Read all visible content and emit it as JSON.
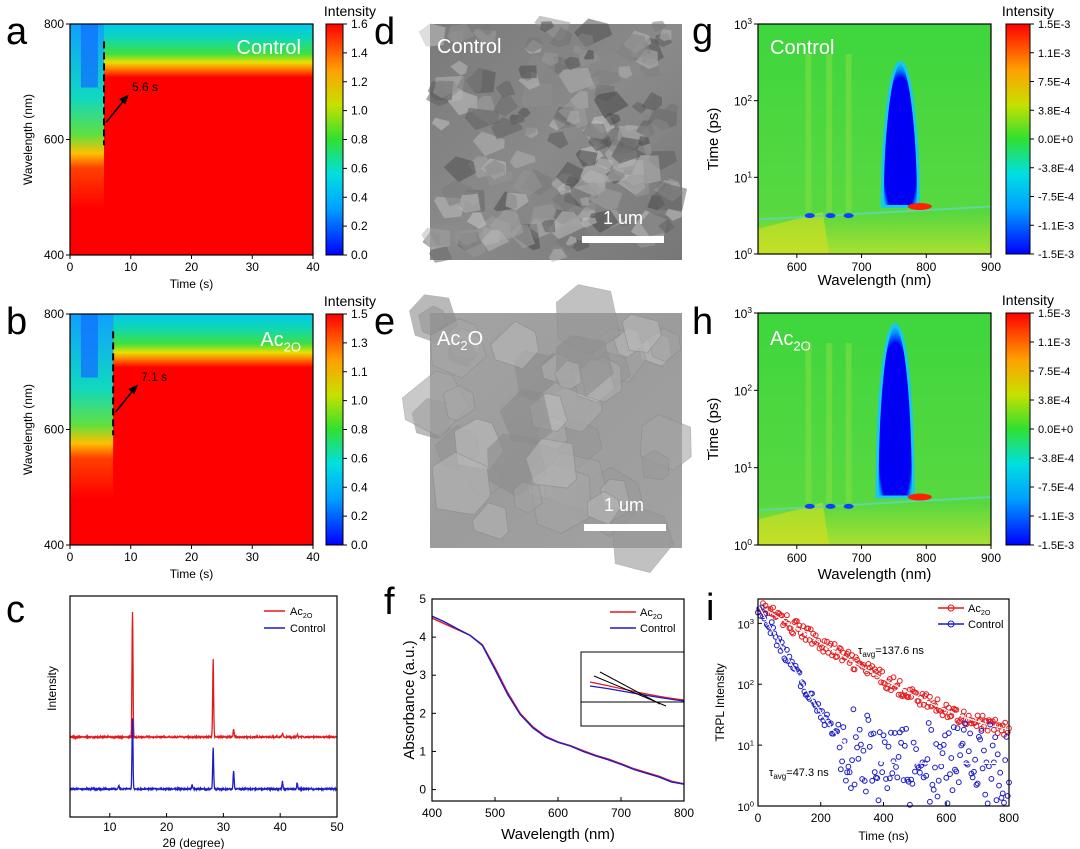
{
  "panel_letters": [
    "a",
    "b",
    "c",
    "d",
    "e",
    "f",
    "g",
    "h",
    "i"
  ],
  "colors": {
    "red": "#e31a1c",
    "blue": "#1c1cc8",
    "frame": "#000000",
    "map_red": "#ff0000",
    "map_blue": "#0000ff",
    "map_green": "#38d638"
  },
  "chart_data": [
    {
      "id": "a",
      "type": "heatmap",
      "title": "Control",
      "xlabel": "Time (s)",
      "ylabel": "Wavelength (nm)",
      "xlim": [
        0,
        40
      ],
      "ylim": [
        400,
        800
      ],
      "xticks": [
        0,
        10,
        20,
        30,
        40
      ],
      "yticks": [
        400,
        600,
        800
      ],
      "colorbar": {
        "title": "Intensity",
        "range": [
          0.0,
          1.6
        ],
        "ticks": [
          "0.0",
          "0.2",
          "0.4",
          "0.6",
          "0.8",
          "1.0",
          "1.2",
          "1.4",
          "1.6"
        ]
      },
      "annotation": "5.6 s",
      "transition_time": 5.6
    },
    {
      "id": "b",
      "type": "heatmap",
      "title": "Ac2O",
      "xlabel": "Time (s)",
      "ylabel": "Wavelength (nm)",
      "xlim": [
        0,
        40
      ],
      "ylim": [
        400,
        800
      ],
      "xticks": [
        0,
        10,
        20,
        30,
        40
      ],
      "yticks": [
        400,
        600,
        800
      ],
      "colorbar": {
        "title": "Intensity",
        "range": [
          0.0,
          1.5
        ],
        "ticks": [
          "0.0",
          "0.2",
          "0.4",
          "0.6",
          "0.8",
          "1.0",
          "1.1",
          "1.3",
          "1.5"
        ]
      },
      "annotation": "7.1 s",
      "transition_time": 7.1
    },
    {
      "id": "c",
      "type": "line",
      "xlabel": "2θ (degree)",
      "ylabel": "Intensity",
      "xlim": [
        3,
        50
      ],
      "xticks": [
        10,
        20,
        30,
        40,
        50
      ],
      "legend": [
        "Ac2O",
        "Control"
      ],
      "series": [
        {
          "name": "Ac2O",
          "color": "red",
          "peaks": [
            {
              "x": 14.0,
              "h": 1.0
            },
            {
              "x": 28.2,
              "h": 0.62
            },
            {
              "x": 31.8,
              "h": 0.06
            },
            {
              "x": 40.4,
              "h": 0.03
            },
            {
              "x": 43.0,
              "h": 0.02
            }
          ]
        },
        {
          "name": "Control",
          "color": "blue",
          "peaks": [
            {
              "x": 14.0,
              "h": 0.47
            },
            {
              "x": 28.2,
              "h": 0.28
            },
            {
              "x": 31.8,
              "h": 0.12
            },
            {
              "x": 24.5,
              "h": 0.03
            },
            {
              "x": 40.4,
              "h": 0.05
            },
            {
              "x": 43.0,
              "h": 0.04
            },
            {
              "x": 11.6,
              "h": 0.02
            }
          ]
        }
      ]
    },
    {
      "id": "d",
      "type": "image",
      "label": "Control",
      "scale_bar": "1 um"
    },
    {
      "id": "e",
      "type": "image",
      "label": "Ac2O",
      "scale_bar": "1 um"
    },
    {
      "id": "f",
      "type": "line",
      "xlabel": "Wavelength (nm)",
      "ylabel": "Absorbance (a.u.)",
      "xlim": [
        400,
        800
      ],
      "ylim": [
        -0.3,
        5
      ],
      "xticks": [
        400,
        500,
        600,
        700,
        800
      ],
      "yticks": [
        0,
        1,
        2,
        3,
        4,
        5
      ],
      "legend": [
        "Ac2O",
        "Control"
      ],
      "series": [
        {
          "name": "Ac2O",
          "color": "red",
          "x": [
            400,
            420,
            440,
            460,
            480,
            500,
            520,
            540,
            560,
            580,
            600,
            620,
            640,
            660,
            680,
            700,
            720,
            740,
            760,
            780,
            800
          ],
          "y": [
            4.5,
            4.35,
            4.2,
            4.05,
            3.8,
            3.2,
            2.55,
            2.0,
            1.65,
            1.4,
            1.25,
            1.15,
            1.02,
            0.9,
            0.8,
            0.68,
            0.55,
            0.45,
            0.35,
            0.22,
            0.15
          ]
        },
        {
          "name": "Control",
          "color": "blue",
          "x": [
            400,
            420,
            440,
            460,
            480,
            500,
            520,
            540,
            560,
            580,
            600,
            620,
            640,
            660,
            680,
            700,
            720,
            740,
            760,
            780,
            800
          ],
          "y": [
            4.55,
            4.4,
            4.22,
            4.05,
            3.78,
            3.15,
            2.5,
            1.97,
            1.62,
            1.38,
            1.24,
            1.14,
            1.0,
            0.88,
            0.78,
            0.66,
            0.53,
            0.43,
            0.33,
            0.2,
            0.14
          ]
        }
      ]
    },
    {
      "id": "g",
      "type": "heatmap",
      "title": "Control",
      "xlabel": "Wavelength (nm)",
      "ylabel": "Time (ps)",
      "xlim": [
        540,
        900
      ],
      "ylim_log": [
        0,
        3
      ],
      "xticks": [
        600,
        700,
        800,
        900
      ],
      "yticks": [
        "10^0",
        "10^1",
        "10^2",
        "10^3"
      ],
      "colorbar": {
        "title": "Intensity",
        "ticks": [
          "-1.5E-3",
          "-1.1E-3",
          "-7.5E-4",
          "-3.8E-4",
          "0.0E+0",
          "3.8E-4",
          "7.5E-4",
          "1.1E-3",
          "1.5E-3"
        ]
      },
      "bleach_center": 760,
      "bleach_top_log": 2.5
    },
    {
      "id": "h",
      "type": "heatmap",
      "title": "Ac2O",
      "xlabel": "Wavelength (nm)",
      "ylabel": "Time (ps)",
      "xlim": [
        540,
        900
      ],
      "ylim_log": [
        0,
        3
      ],
      "xticks": [
        600,
        700,
        800,
        900
      ],
      "yticks": [
        "10^0",
        "10^1",
        "10^2",
        "10^3"
      ],
      "colorbar": {
        "title": "Intensity",
        "ticks": [
          "-1.5E-3",
          "-1.1E-3",
          "-7.5E-4",
          "-3.8E-4",
          "0.0E+0",
          "3.8E-4",
          "7.5E-4",
          "1.1E-3",
          "1.5E-3"
        ]
      },
      "bleach_center": 752,
      "bleach_top_log": 2.85
    },
    {
      "id": "i",
      "type": "scatter",
      "xlabel": "Time (ns)",
      "ylabel": "TRPL Intensity",
      "xlim": [
        0,
        800
      ],
      "ylim_log": [
        0,
        3.4
      ],
      "xticks": [
        0,
        200,
        400,
        600,
        800
      ],
      "yticks": [
        "10^0",
        "10^1",
        "10^2",
        "10^3"
      ],
      "legend": [
        "Ac2O",
        "Control"
      ],
      "series": [
        {
          "name": "Ac2O",
          "color": "red",
          "tau_label": "τavg=137.6 ns",
          "tau": 137.6,
          "amp": 2000,
          "floor": 12
        },
        {
          "name": "Control",
          "color": "blue",
          "tau_label": "τavg=47.3 ns",
          "tau": 47.3,
          "amp": 2000,
          "floor": 5
        }
      ]
    }
  ]
}
